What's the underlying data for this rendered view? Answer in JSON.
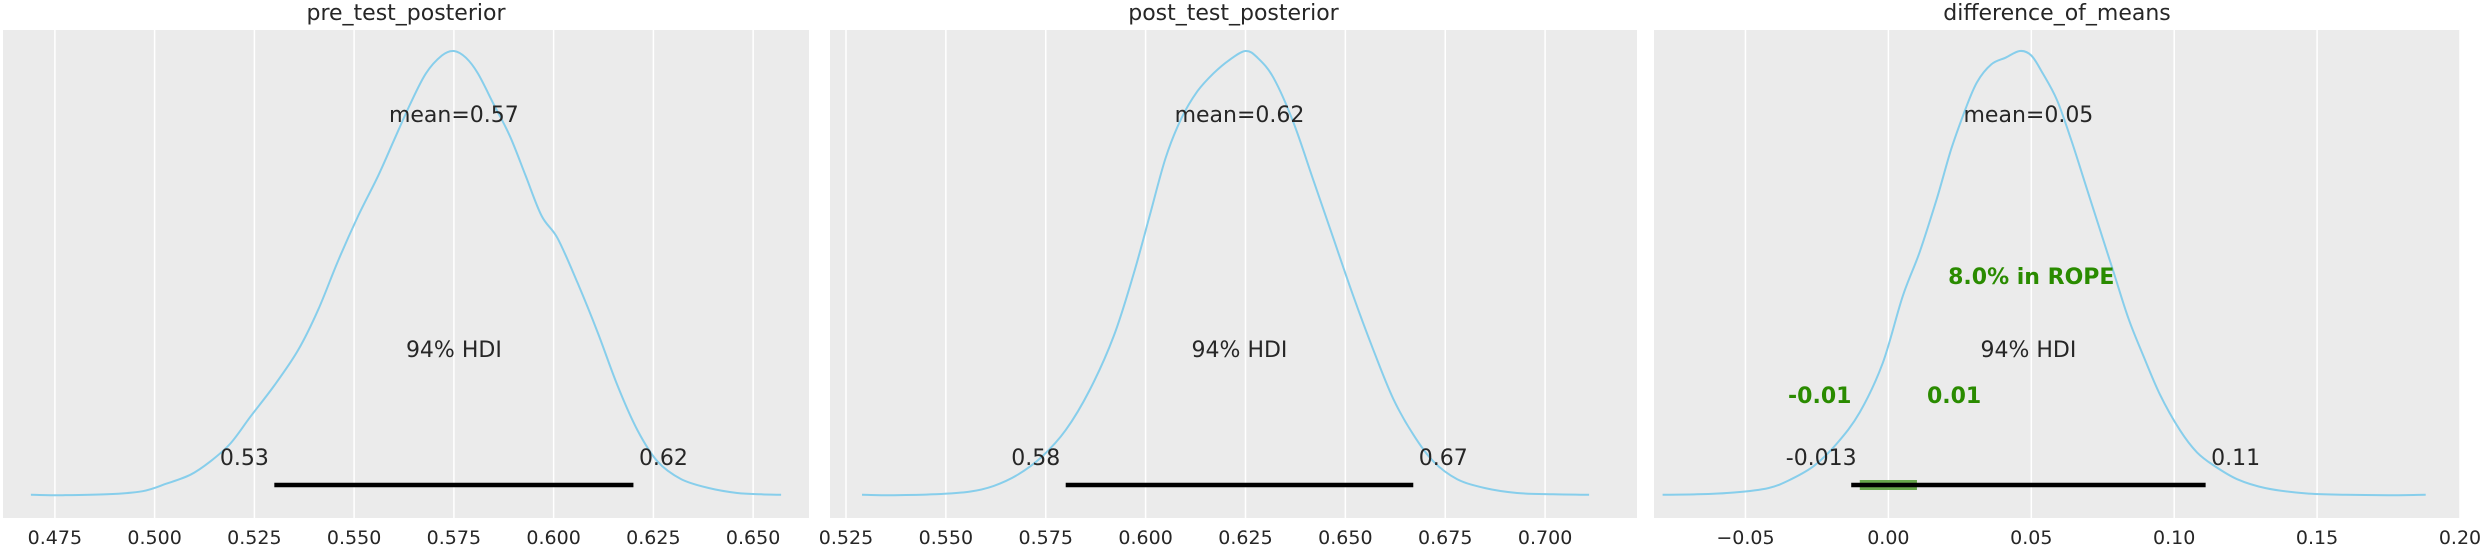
{
  "figure": {
    "style": "arviz-darkgrid",
    "background": "#ffffff",
    "panel_bg": "#ebebeb",
    "grid": "#ffffff",
    "kde_color": "#87ceeb",
    "hdi_color": "#000000",
    "rope_color": "#2a8b00",
    "rope_fill": "#5aa03c"
  },
  "chart_data": [
    {
      "type": "area",
      "title": "pre_test_posterior",
      "xlim": [
        0.462,
        0.664
      ],
      "ticks": [
        0.475,
        0.5,
        0.525,
        0.55,
        0.575,
        0.6,
        0.625,
        0.65
      ],
      "tick_labels": [
        "0.475",
        "0.500",
        "0.525",
        "0.550",
        "0.575",
        "0.600",
        "0.625",
        "0.650"
      ],
      "mean_label": "mean=0.57",
      "hdi_label": "94% HDI",
      "hdi": [
        0.53,
        0.62
      ],
      "hdi_low_label": "0.53",
      "hdi_high_label": "0.62",
      "density": {
        "x": [
          0.469,
          0.477,
          0.488,
          0.497,
          0.503,
          0.509,
          0.514,
          0.519,
          0.524,
          0.53,
          0.536,
          0.541,
          0.546,
          0.551,
          0.556,
          0.56,
          0.564,
          0.568,
          0.572,
          0.575,
          0.578,
          0.581,
          0.585,
          0.589,
          0.593,
          0.597,
          0.601,
          0.606,
          0.611,
          0.616,
          0.621,
          0.626,
          0.632,
          0.639,
          0.646,
          0.652,
          0.657
        ],
        "y": [
          0.005,
          0.004,
          0.006,
          0.013,
          0.03,
          0.05,
          0.08,
          0.12,
          0.18,
          0.25,
          0.33,
          0.42,
          0.53,
          0.63,
          0.72,
          0.8,
          0.88,
          0.95,
          0.99,
          1.0,
          0.985,
          0.95,
          0.88,
          0.81,
          0.72,
          0.63,
          0.58,
          0.48,
          0.37,
          0.25,
          0.15,
          0.08,
          0.04,
          0.02,
          0.009,
          0.006,
          0.005
        ]
      }
    },
    {
      "type": "area",
      "title": "post_test_posterior",
      "xlim": [
        0.521,
        0.723
      ],
      "ticks": [
        0.525,
        0.55,
        0.575,
        0.6,
        0.625,
        0.65,
        0.675,
        0.7
      ],
      "tick_labels": [
        "0.525",
        "0.550",
        "0.575",
        "0.600",
        "0.625",
        "0.650",
        "0.675",
        "0.700"
      ],
      "mean_label": "mean=0.62",
      "hdi_label": "94% HDI",
      "hdi": [
        0.58,
        0.667
      ],
      "hdi_low_label": "0.58",
      "hdi_high_label": "0.67",
      "density": {
        "x": [
          0.529,
          0.537,
          0.547,
          0.556,
          0.562,
          0.568,
          0.574,
          0.58,
          0.586,
          0.592,
          0.597,
          0.601,
          0.605,
          0.609,
          0.613,
          0.617,
          0.621,
          0.625,
          0.628,
          0.632,
          0.637,
          0.642,
          0.647,
          0.652,
          0.657,
          0.662,
          0.667,
          0.672,
          0.678,
          0.685,
          0.693,
          0.702,
          0.711
        ],
        "y": [
          0.005,
          0.004,
          0.006,
          0.012,
          0.025,
          0.05,
          0.09,
          0.15,
          0.24,
          0.36,
          0.5,
          0.63,
          0.76,
          0.85,
          0.91,
          0.95,
          0.98,
          1.0,
          0.985,
          0.94,
          0.84,
          0.71,
          0.58,
          0.45,
          0.33,
          0.22,
          0.14,
          0.08,
          0.04,
          0.02,
          0.009,
          0.006,
          0.005
        ]
      }
    },
    {
      "type": "area",
      "title": "difference_of_means",
      "xlim": [
        -0.082,
        0.2
      ],
      "ticks": [
        -0.05,
        0.0,
        0.05,
        0.1,
        0.15,
        0.2
      ],
      "tick_labels": [
        "−0.05",
        "0.00",
        "0.05",
        "0.10",
        "0.15",
        "0.20"
      ],
      "mean_label": "mean=0.05",
      "hdi_label": "94% HDI",
      "hdi": [
        -0.013,
        0.111
      ],
      "hdi_low_label": "-0.013",
      "hdi_high_label": "0.11",
      "rope": [
        -0.01,
        0.01
      ],
      "rope_label": "8.0% in ROPE",
      "rope_low_label": "-0.01",
      "rope_high_label": "0.01",
      "density": {
        "x": [
          -0.079,
          -0.067,
          -0.054,
          -0.042,
          -0.034,
          -0.026,
          -0.018,
          -0.01,
          -0.002,
          0.005,
          0.011,
          0.017,
          0.022,
          0.027,
          0.031,
          0.036,
          0.041,
          0.046,
          0.05,
          0.054,
          0.059,
          0.064,
          0.069,
          0.074,
          0.079,
          0.084,
          0.089,
          0.095,
          0.102,
          0.108,
          0.114,
          0.122,
          0.132,
          0.146,
          0.16,
          0.175,
          0.188
        ],
        "y": [
          0.005,
          0.006,
          0.01,
          0.02,
          0.04,
          0.07,
          0.12,
          0.19,
          0.3,
          0.45,
          0.55,
          0.67,
          0.78,
          0.87,
          0.93,
          0.97,
          0.985,
          1.0,
          0.99,
          0.95,
          0.89,
          0.8,
          0.7,
          0.6,
          0.5,
          0.4,
          0.32,
          0.23,
          0.15,
          0.1,
          0.07,
          0.04,
          0.02,
          0.008,
          0.005,
          0.004,
          0.005
        ]
      }
    }
  ]
}
